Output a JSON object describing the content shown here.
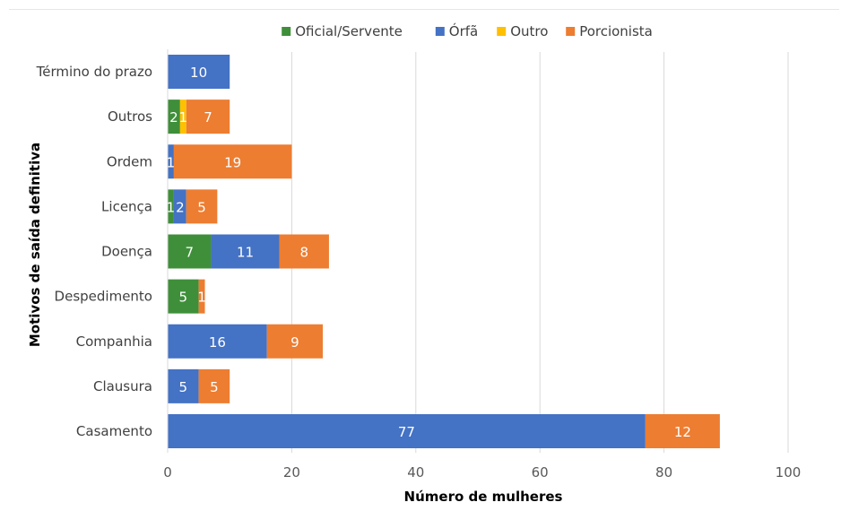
{
  "chart_data": {
    "type": "bar",
    "orientation": "horizontal",
    "stacked": true,
    "categories": [
      "Término do prazo",
      "Outros",
      "Ordem",
      "Licença",
      "Doença",
      "Despedimento",
      "Companhia",
      "Clausura",
      "Casamento"
    ],
    "series": [
      {
        "name": "Oficial/Servente",
        "color": "#3f8f3a",
        "values": [
          0,
          2,
          0,
          1,
          7,
          5,
          0,
          0,
          0
        ]
      },
      {
        "name": "Órfã",
        "color": "#4472c4",
        "values": [
          10,
          0,
          1,
          2,
          11,
          0,
          16,
          5,
          77
        ]
      },
      {
        "name": "Outro",
        "color": "#ffc000",
        "values": [
          0,
          1,
          0,
          0,
          0,
          0,
          0,
          0,
          0
        ]
      },
      {
        "name": "Porcionista",
        "color": "#ed7d31",
        "values": [
          0,
          7,
          19,
          5,
          8,
          1,
          9,
          5,
          12
        ]
      }
    ],
    "xlabel": "Número de mulheres",
    "ylabel": "Motivos de saída definitiva",
    "xlim": [
      0,
      100
    ],
    "xticks": [
      0,
      20,
      40,
      60,
      80,
      100
    ],
    "grid": true,
    "legend_position": "top",
    "data_labels": true
  }
}
